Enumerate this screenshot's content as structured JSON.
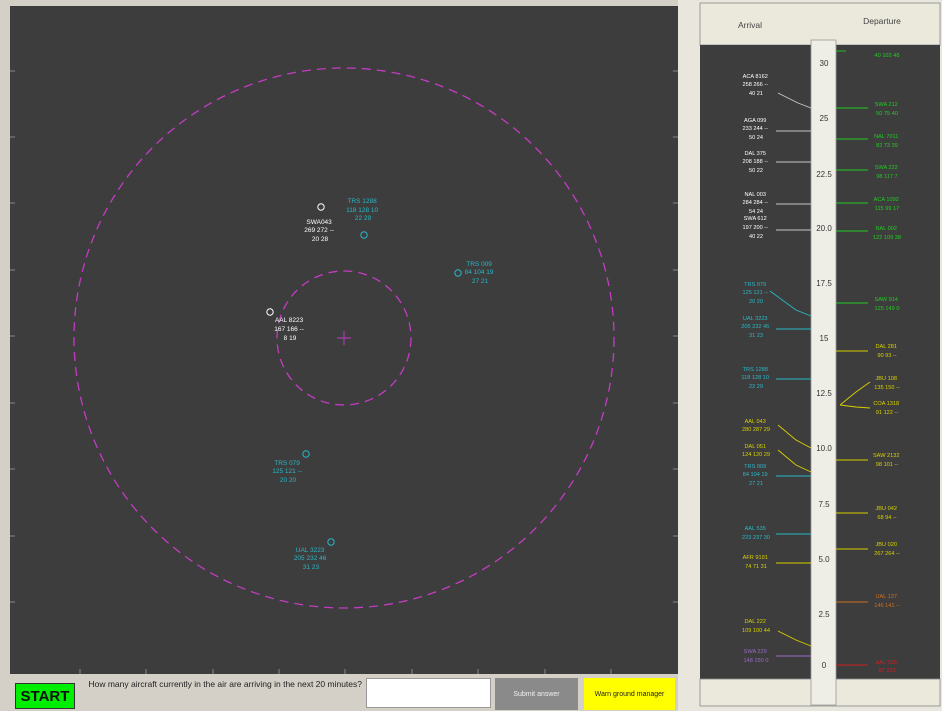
{
  "colors": {
    "radar_bg": "#3d3d3d",
    "ring": "#c33cc3",
    "white": "#ffffff",
    "cyan": "#2ab8c8",
    "yellow": "#d8d000",
    "green": "#22cc22",
    "orange": "#d07020",
    "red": "#cc2020",
    "purple": "#9a6ac8"
  },
  "radar": {
    "aircraft": [
      {
        "color": "white",
        "lines": [
          "SWA043",
          "269 272 --",
          "20 28"
        ]
      },
      {
        "color": "cyan",
        "lines": [
          "TRS 1288",
          "118 128 10",
          "22 29"
        ]
      },
      {
        "color": "cyan",
        "lines": [
          "TRS 009",
          "84 104 19",
          "27 21"
        ]
      },
      {
        "color": "white",
        "lines": [
          "AAL 8223",
          "167 166 --",
          "8 19"
        ]
      },
      {
        "color": "cyan",
        "lines": [
          "TRS 079",
          "125 121 --",
          "20 20"
        ]
      },
      {
        "color": "cyan",
        "lines": [
          "UAL 3223",
          "205 232 46",
          "31 23"
        ]
      }
    ]
  },
  "timeline": {
    "arrival_header": "Arrival",
    "departure_header": "Departure",
    "ticks": [
      "30",
      "25",
      "22.5",
      "20.0",
      "17.5",
      "15",
      "12.5",
      "10.0",
      "7.5",
      "5.0",
      "2.5",
      "0"
    ],
    "arrivals": [
      {
        "color": "white",
        "lines": [
          "ACA 8162",
          "258 266 --",
          "40 21"
        ]
      },
      {
        "color": "white",
        "lines": [
          "AGA 099",
          "233 244 --",
          "50 24"
        ]
      },
      {
        "color": "white",
        "lines": [
          "DAL 375",
          "208 188 --",
          "50 22"
        ]
      },
      {
        "color": "white",
        "lines": [
          "NAL 003",
          "284 284 --",
          "54 24"
        ]
      },
      {
        "color": "white",
        "lines": [
          "SWA 612",
          "197 200 --",
          "40 22"
        ]
      },
      {
        "color": "cyan",
        "lines": [
          "TRS 079",
          "125 121 --",
          "20 20"
        ]
      },
      {
        "color": "cyan",
        "lines": [
          "UAL 3223",
          "205 232 46",
          "31 23"
        ]
      },
      {
        "color": "cyan",
        "lines": [
          "TRS 1288",
          "118 128 10",
          "22 29"
        ]
      },
      {
        "color": "yellow",
        "lines": [
          "AAL 043",
          "280 287 29"
        ]
      },
      {
        "color": "yellow",
        "lines": [
          "DAL 051",
          "124 120 29"
        ]
      },
      {
        "color": "cyan",
        "lines": [
          "TRS 009",
          "84 104 19",
          "27 21"
        ]
      },
      {
        "color": "cyan",
        "lines": [
          "AAL 535",
          "223 237 30"
        ]
      },
      {
        "color": "yellow",
        "lines": [
          "AFR 9191",
          "74 71 31"
        ]
      },
      {
        "color": "yellow",
        "lines": [
          "DAL 222",
          "109 100 44"
        ]
      },
      {
        "color": "purple",
        "lines": [
          "SWA 229",
          "148 150 0"
        ]
      }
    ],
    "departures": [
      {
        "color": "green",
        "lines": [
          "40 103 48"
        ]
      },
      {
        "color": "green",
        "lines": [
          "SWA 212",
          "50 75 40"
        ]
      },
      {
        "color": "green",
        "lines": [
          "NAL 7011",
          "82 73 39"
        ]
      },
      {
        "color": "green",
        "lines": [
          "SWA 222",
          "98 117 7"
        ]
      },
      {
        "color": "green",
        "lines": [
          "ACA 1092",
          "115 99 17"
        ]
      },
      {
        "color": "green",
        "lines": [
          "NAL 002",
          "122 109 38"
        ]
      },
      {
        "color": "green",
        "lines": [
          "SAW 914",
          "125 149 0"
        ]
      },
      {
        "color": "yellow",
        "lines": [
          "DAL 281",
          "90 93 --"
        ]
      },
      {
        "color": "yellow",
        "lines": [
          "JBU 108",
          "135 150 --"
        ]
      },
      {
        "color": "yellow",
        "lines": [
          "COA 1318",
          "91 122 --"
        ]
      },
      {
        "color": "yellow",
        "lines": [
          "SAW 2132",
          "98 101 --"
        ]
      },
      {
        "color": "yellow",
        "lines": [
          "JBU 042",
          "68 94 --"
        ]
      },
      {
        "color": "yellow",
        "lines": [
          "JBU 020",
          "267 264 --"
        ]
      },
      {
        "color": "orange",
        "lines": [
          "UAL 137",
          "146 141 --"
        ]
      },
      {
        "color": "red",
        "lines": [
          "AAL 555",
          "87 223"
        ]
      }
    ]
  },
  "bottom": {
    "start_label": "START",
    "question": "How many aircraft currently in the air are arriving in the next 20 minutes?",
    "answer_value": "",
    "submit_label": "Submit answer",
    "warn_label": "Warn ground manager"
  }
}
